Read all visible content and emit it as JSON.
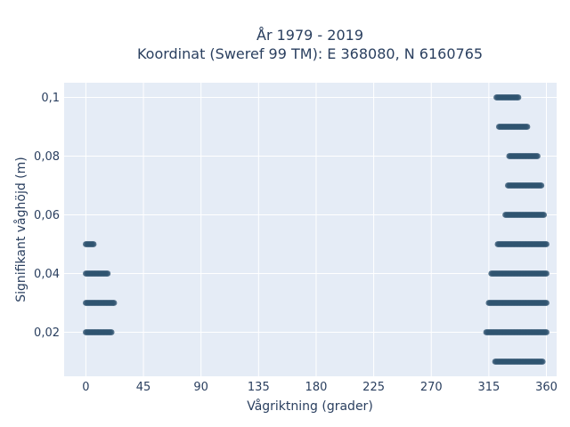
{
  "chart_data": {
    "type": "scatter",
    "title": "År 1979 - 2019",
    "subtitle": "Koordinat (Sweref 99 TM): E 368080, N 6160765",
    "xlabel": "Vågriktning (grader)",
    "ylabel": "Signifikant våghöjd (m)",
    "xlim": [
      -17,
      368
    ],
    "ylim": [
      0.005,
      0.105
    ],
    "xticks": [
      0,
      45,
      90,
      135,
      180,
      225,
      270,
      315,
      360
    ],
    "xtick_labels": [
      "0",
      "45",
      "90",
      "135",
      "180",
      "225",
      "270",
      "315",
      "360"
    ],
    "yticks": [
      0.02,
      0.04,
      0.06,
      0.08,
      0.1
    ],
    "ytick_labels": [
      "0,02",
      "0,04",
      "0,06",
      "0,08",
      "0,1"
    ],
    "grid": true,
    "colors": {
      "point": "#2f5470",
      "background": "#e5ecf6",
      "grid": "#ffffff",
      "text": "#2a3f5f"
    },
    "bands": [
      {
        "y": 0.01,
        "x_min": 320,
        "x_max": 357
      },
      {
        "y": 0.02,
        "x_min": 313,
        "x_max": 360
      },
      {
        "y": 0.02,
        "x_min": 0,
        "x_max": 20
      },
      {
        "y": 0.03,
        "x_min": 315,
        "x_max": 360
      },
      {
        "y": 0.03,
        "x_min": 0,
        "x_max": 22
      },
      {
        "y": 0.04,
        "x_min": 317,
        "x_max": 360
      },
      {
        "y": 0.04,
        "x_min": 0,
        "x_max": 17
      },
      {
        "y": 0.05,
        "x_min": 322,
        "x_max": 360
      },
      {
        "y": 0.05,
        "x_min": 0,
        "x_max": 6
      },
      {
        "y": 0.06,
        "x_min": 328,
        "x_max": 358
      },
      {
        "y": 0.07,
        "x_min": 330,
        "x_max": 356
      },
      {
        "y": 0.08,
        "x_min": 331,
        "x_max": 353
      },
      {
        "y": 0.09,
        "x_min": 323,
        "x_max": 345
      },
      {
        "y": 0.1,
        "x_min": 321,
        "x_max": 338
      }
    ]
  }
}
